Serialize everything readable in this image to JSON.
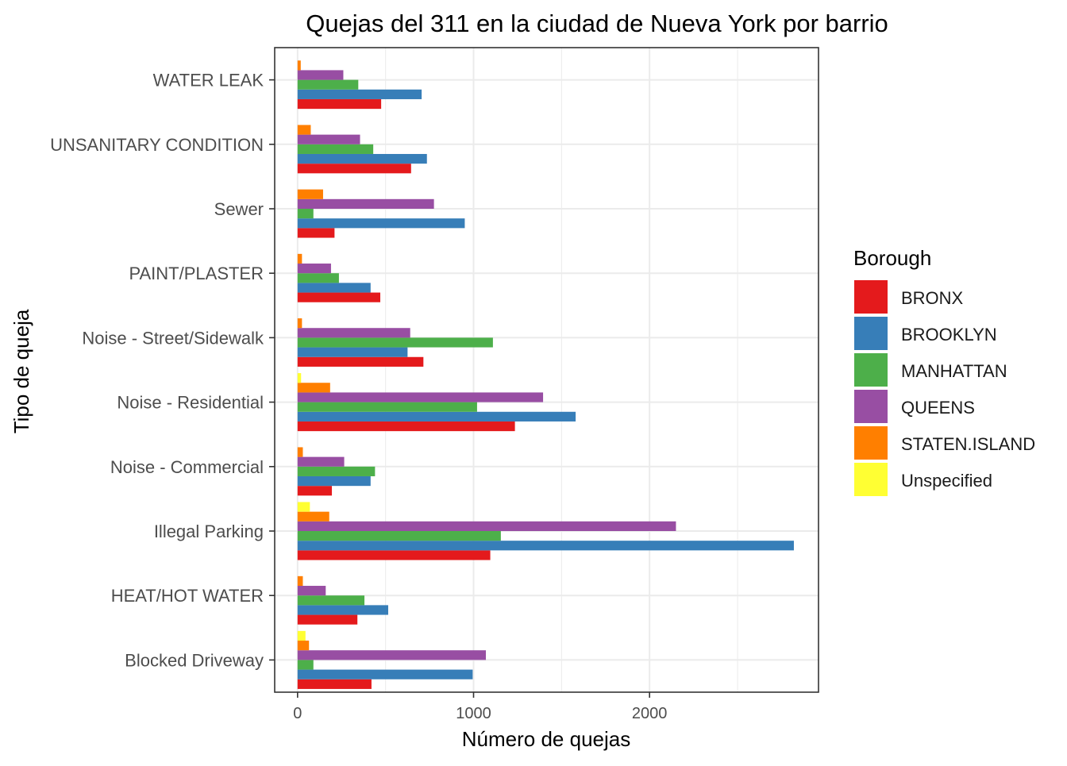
{
  "chart_data": {
    "type": "bar",
    "orientation": "horizontal",
    "title": "Quejas del 311 en la ciudad de Nueva York por barrio",
    "xlabel": "Número de quejas",
    "ylabel": "Tipo de queja",
    "xlim": [
      -130,
      2960
    ],
    "xticks": [
      0,
      1000,
      2000
    ],
    "xtick_labels": [
      "0",
      "1000",
      "2000"
    ],
    "grid": true,
    "legend": {
      "title": "Borough",
      "placement": "right"
    },
    "categories": [
      "WATER LEAK",
      "UNSANITARY CONDITION",
      "Sewer",
      "PAINT/PLASTER",
      "Noise - Street/Sidewalk",
      "Noise - Residential",
      "Noise - Commercial",
      "Illegal Parking",
      "HEAT/HOT WATER",
      "Blocked Driveway"
    ],
    "series": [
      {
        "name": "BRONX",
        "color": "#E41A1C",
        "values": [
          475,
          645,
          210,
          470,
          715,
          1235,
          195,
          1095,
          340,
          420
        ]
      },
      {
        "name": "BROOKLYN",
        "color": "#377EB8",
        "values": [
          705,
          735,
          950,
          415,
          625,
          1580,
          415,
          2820,
          515,
          995
        ]
      },
      {
        "name": "MANHATTAN",
        "color": "#4DAF4A",
        "values": [
          345,
          430,
          90,
          235,
          1110,
          1020,
          440,
          1155,
          380,
          90
        ]
      },
      {
        "name": "QUEENS",
        "color": "#984EA3",
        "values": [
          260,
          355,
          775,
          190,
          640,
          1395,
          265,
          2150,
          160,
          1070
        ]
      },
      {
        "name": "STATEN.ISLAND",
        "color": "#FF7F00",
        "values": [
          18,
          75,
          145,
          25,
          25,
          185,
          30,
          180,
          30,
          65
        ]
      },
      {
        "name": "Unspecified",
        "color": "#FFFF33",
        "values": [
          0,
          0,
          0,
          0,
          0,
          20,
          0,
          70,
          0,
          45
        ]
      }
    ]
  }
}
